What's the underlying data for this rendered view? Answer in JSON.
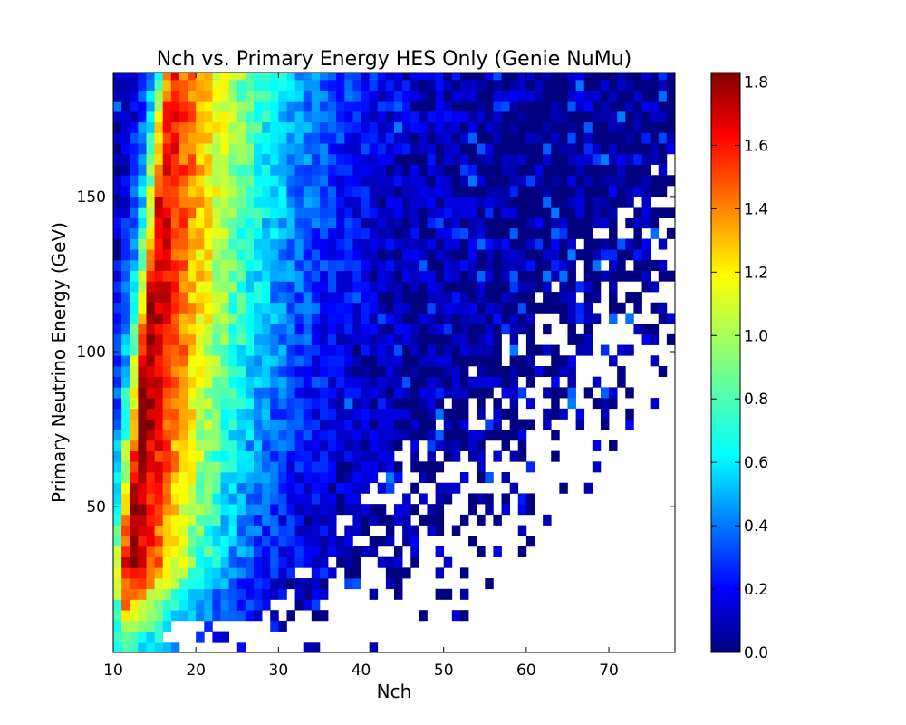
{
  "colors": {
    "colormap": "jet",
    "background": "#ffffff",
    "axis": "#000000"
  },
  "chart_data": {
    "type": "heatmap",
    "title": "Nch vs. Primary Energy HES Only (Genie NuMu)",
    "xlabel": "Nch",
    "ylabel": "Primary Neutrino Energy (GeV)",
    "xlim": [
      10,
      78
    ],
    "ylim": [
      3,
      190
    ],
    "x_ticks": [
      10,
      20,
      30,
      40,
      50,
      60,
      70
    ],
    "x_tick_labels": [
      "10",
      "20",
      "30",
      "40",
      "50",
      "60",
      "70"
    ],
    "y_ticks": [
      50,
      100,
      150
    ],
    "y_tick_labels": [
      "50",
      "100",
      "150"
    ],
    "grid": false,
    "colorbar": {
      "range": [
        0.0,
        1.83
      ],
      "ticks": [
        0.0,
        0.2,
        0.4,
        0.6,
        0.8,
        1.0,
        1.2,
        1.4,
        1.6,
        1.8
      ],
      "tick_labels": [
        "0.0",
        "0.2",
        "0.4",
        "0.6",
        "0.8",
        "1.0",
        "1.2",
        "1.4",
        "1.6",
        "1.8"
      ],
      "placement": "right"
    },
    "bins": {
      "x_start": 10,
      "x_width": 1,
      "nx": 68,
      "y_start": 3,
      "y_width": 3.42,
      "ny": 55
    },
    "value_model": {
      "description_of_values": "log10 counts per bin",
      "peak_value": 1.83,
      "ridge_nch_at_low_energy": 11,
      "ridge_nch_at_high_energy": 17
    }
  }
}
